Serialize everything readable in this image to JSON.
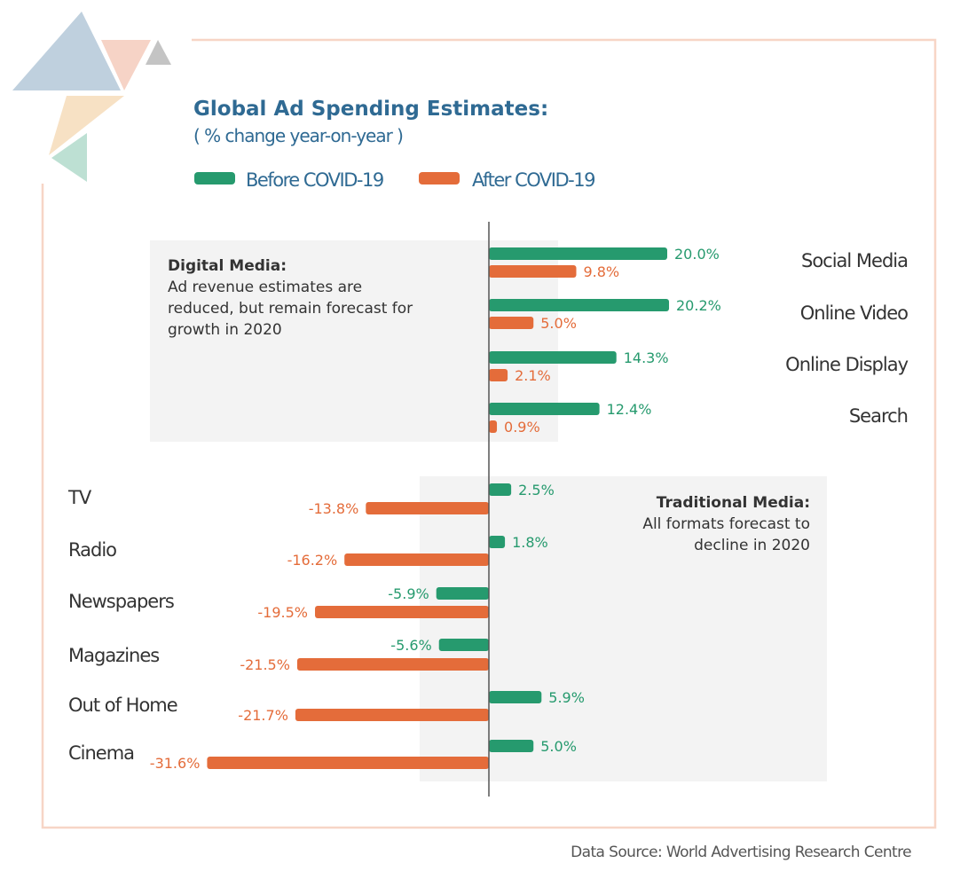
{
  "chart_data": {
    "type": "bar",
    "orientation": "horizontal",
    "title": "Global Ad Spending Estimates:",
    "subtitle": "( % change year-on-year )",
    "legend_placement": "top-left",
    "grid": false,
    "xlim": [
      -35,
      25
    ],
    "series": [
      {
        "name": "Before COVID-19",
        "color": "#269a6e"
      },
      {
        "name": "After COVID-19",
        "color": "#e46c3a"
      }
    ],
    "groups": [
      {
        "title": "Digital Media:",
        "note": "Ad revenue estimates are reduced, but remain forecast for growth in 2020",
        "note_lines": [
          "Ad revenue estimates are",
          "reduced, but remain forecast for",
          "growth in 2020"
        ],
        "categories": [
          "Social Media",
          "Online Video",
          "Online Display",
          "Search"
        ],
        "before": [
          20.0,
          20.2,
          14.3,
          12.4
        ],
        "after": [
          9.8,
          5.0,
          2.1,
          0.9
        ],
        "before_labels": [
          "20.0%",
          "20.2%",
          "14.3%",
          "12.4%"
        ],
        "after_labels": [
          "9.8%",
          "5.0%",
          "2.1%",
          "0.9%"
        ]
      },
      {
        "title": "Traditional Media:",
        "note": "All formats forecast to decline in 2020",
        "note_lines": [
          "All formats forecast to",
          "decline in 2020"
        ],
        "categories": [
          "TV",
          "Radio",
          "Newspapers",
          "Magazines",
          "Out of Home",
          "Cinema"
        ],
        "before": [
          2.5,
          1.8,
          -5.9,
          -5.6,
          5.9,
          5.0
        ],
        "after": [
          -13.8,
          -16.2,
          -19.5,
          -21.5,
          -21.7,
          -31.6
        ],
        "before_labels": [
          "2.5%",
          "1.8%",
          "-5.9%",
          "-5.6%",
          "5.9%",
          "5.0%"
        ],
        "after_labels": [
          "-13.8%",
          "-16.2%",
          "-19.5%",
          "-21.5%",
          "-21.7%",
          "-31.6%"
        ]
      }
    ],
    "source": "Data Source: World Advertising Research Centre"
  },
  "colors": {
    "title": "#2f6a93",
    "frame": "#f7d5c6",
    "panel": "#f3f3f3",
    "axis": "#555555",
    "text": "#333333"
  }
}
